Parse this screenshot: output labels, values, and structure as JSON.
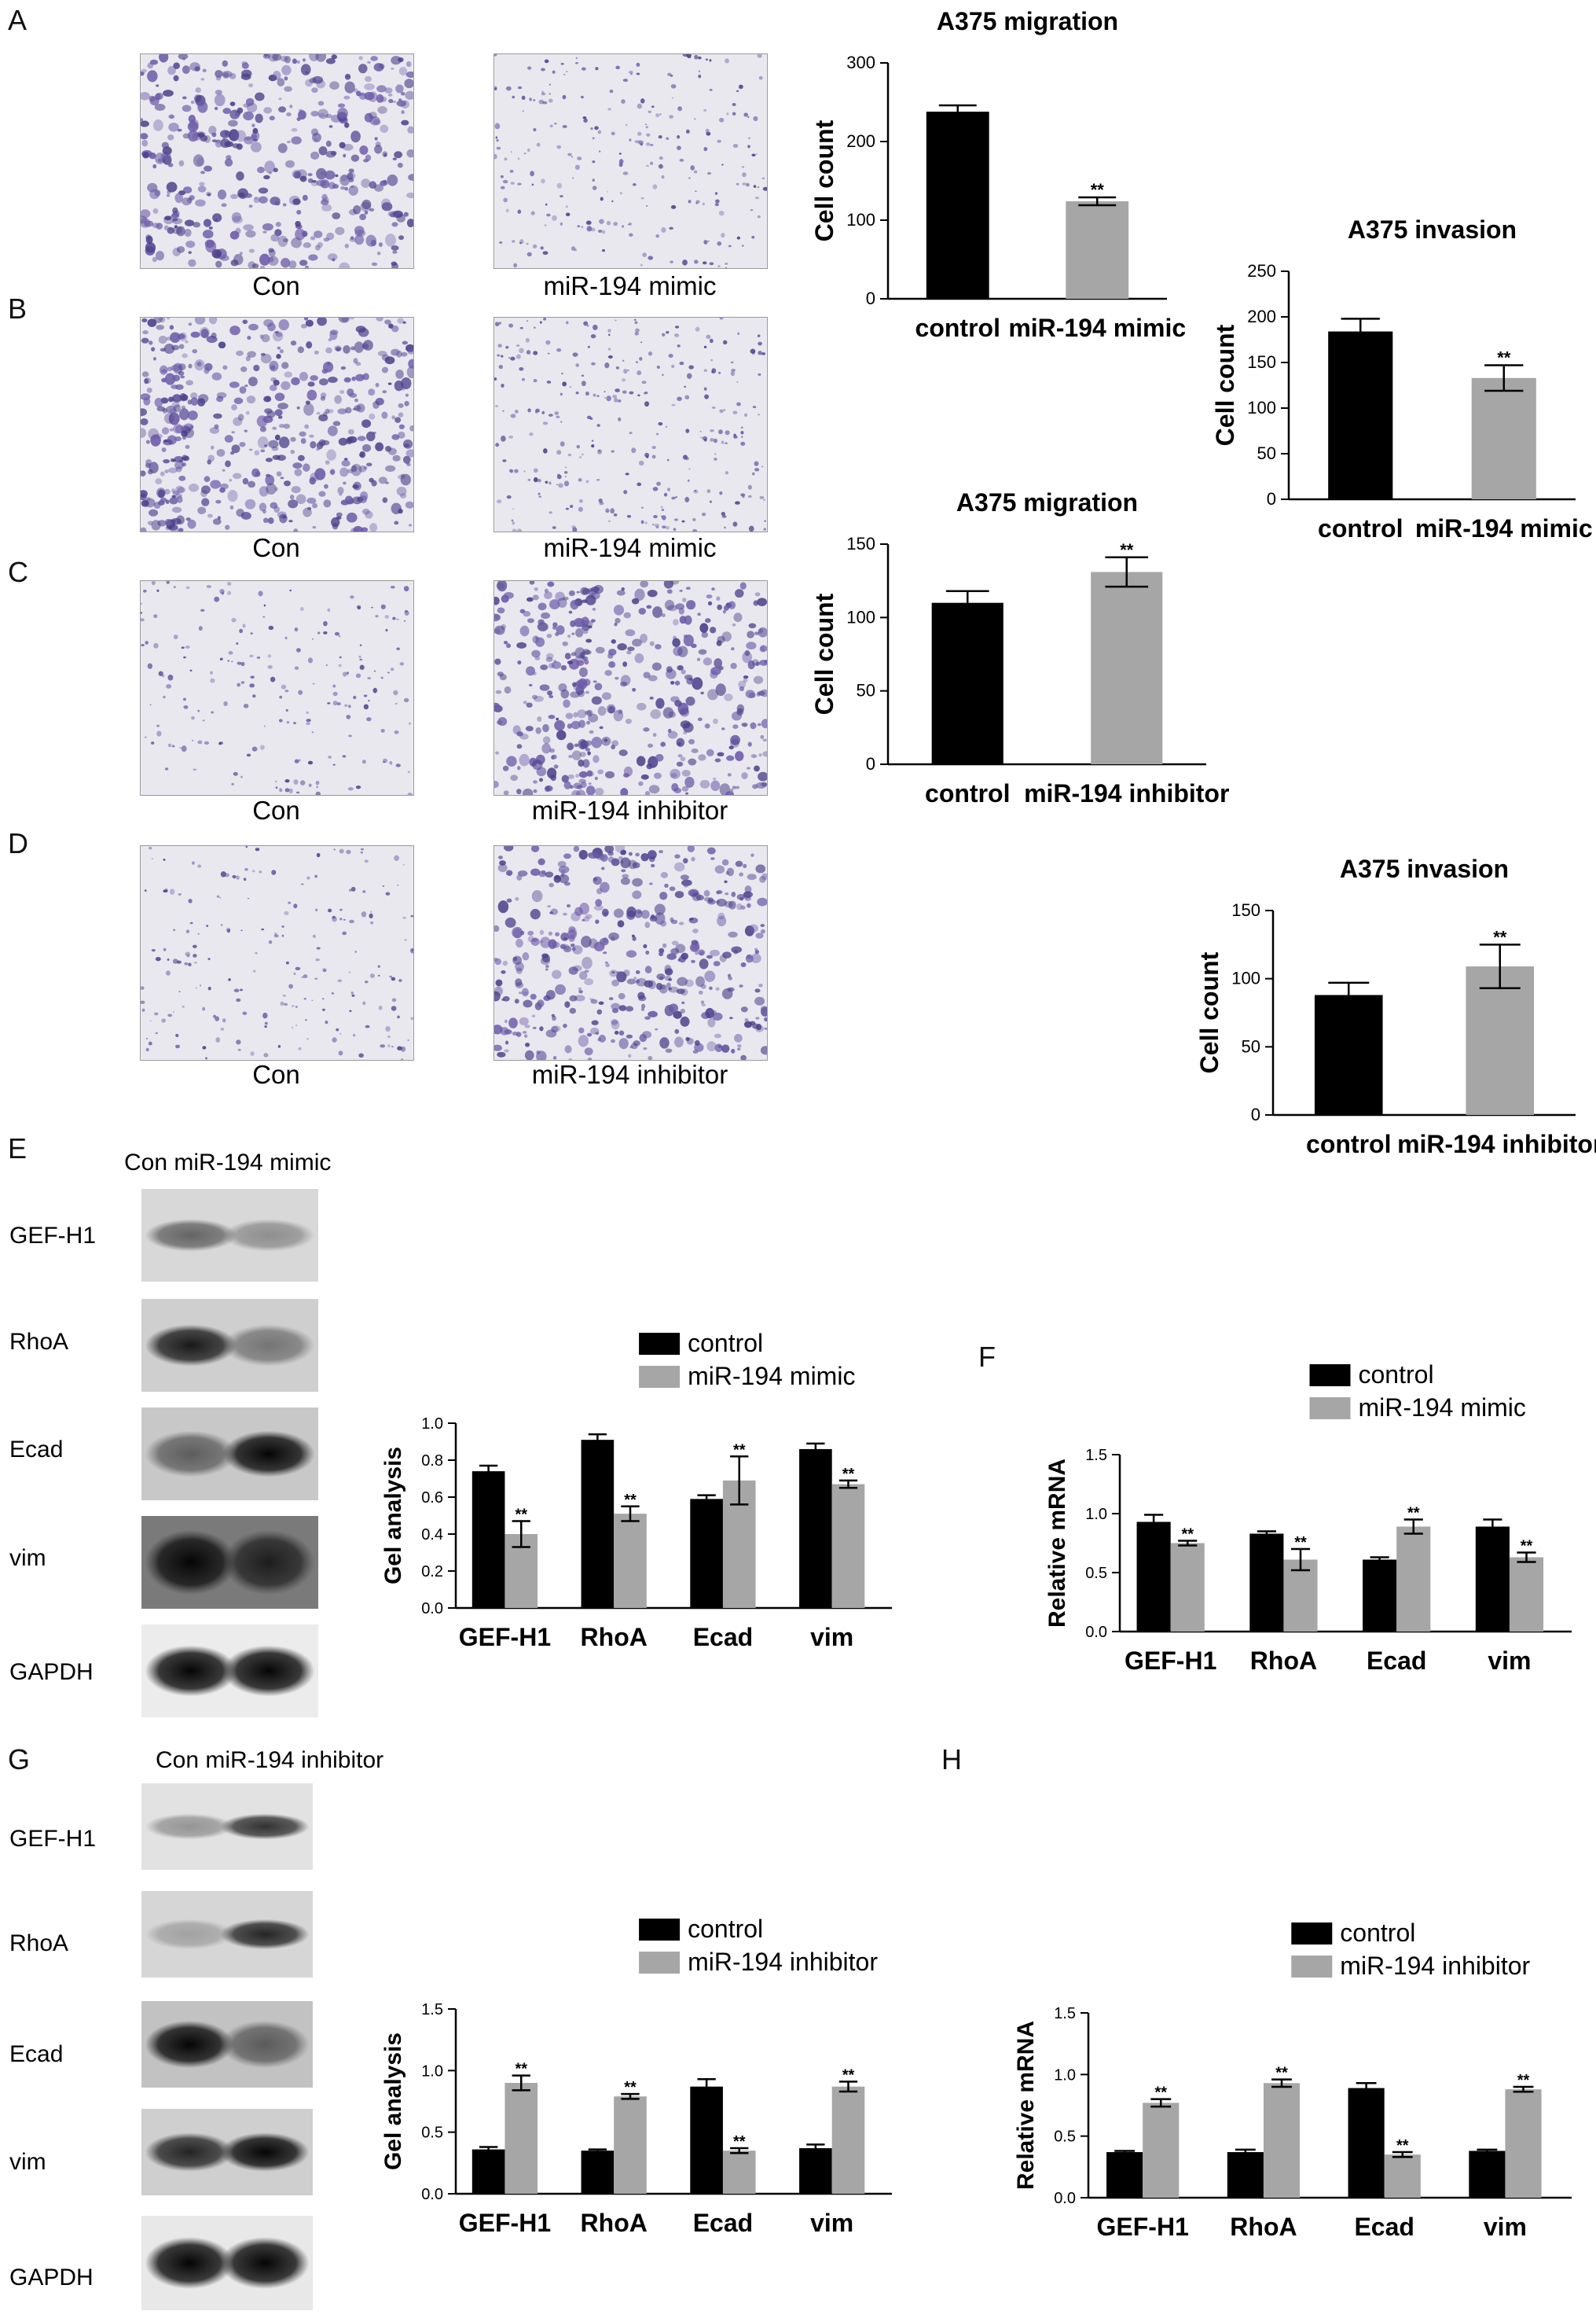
{
  "panel_letters": [
    "A",
    "B",
    "C",
    "D",
    "E",
    "F",
    "G",
    "H"
  ],
  "microscopy_captions": {
    "A_left": "Con",
    "A_right": "miR-194 mimic",
    "B_left": "Con",
    "B_right": "miR-194 mimic",
    "C_left": "Con",
    "C_right": "miR-194 inhibitor",
    "D_left": "Con",
    "D_right": "miR-194 inhibitor"
  },
  "blots": {
    "E": {
      "header": "Con miR-194 mimic",
      "labels": [
        "GEF-H1",
        "RhoA",
        "Ecad",
        "vim",
        "GAPDH"
      ]
    },
    "G": {
      "header": "Con miR-194 inhibitor",
      "labels": [
        "GEF-H1",
        "RhoA",
        "Ecad",
        "vim",
        "GAPDH"
      ]
    }
  },
  "colors": {
    "control": "#000000",
    "treated": "#a6a6a6"
  },
  "chart_data": [
    {
      "id": "A_migration",
      "type": "bar",
      "title": "A375 migration",
      "ylabel": "Cell count",
      "xlabel": "",
      "categories": [
        "control",
        "miR-194 mimic"
      ],
      "values": [
        238,
        124
      ],
      "errors": [
        8,
        5
      ],
      "significance": [
        "",
        "**"
      ],
      "ylim": [
        0,
        300
      ],
      "yticks": [
        0,
        100,
        200,
        300
      ]
    },
    {
      "id": "B_invasion",
      "type": "bar",
      "title": "A375 invasion",
      "ylabel": "Cell count",
      "xlabel": "",
      "categories": [
        "control",
        "miR-194 mimic"
      ],
      "values": [
        184,
        133
      ],
      "errors": [
        14,
        14
      ],
      "significance": [
        "",
        "**"
      ],
      "ylim": [
        0,
        250
      ],
      "yticks": [
        0,
        50,
        100,
        150,
        200,
        250
      ]
    },
    {
      "id": "C_migration",
      "type": "bar",
      "title": "A375 migration",
      "ylabel": "Cell count",
      "xlabel": "",
      "categories": [
        "control",
        "miR-194 inhibitor"
      ],
      "values": [
        110,
        131
      ],
      "errors": [
        8,
        10
      ],
      "significance": [
        "",
        "**"
      ],
      "ylim": [
        0,
        150
      ],
      "yticks": [
        0,
        50,
        100,
        150
      ]
    },
    {
      "id": "D_invasion",
      "type": "bar",
      "title": "A375 invasion",
      "ylabel": "Cell count",
      "xlabel": "",
      "categories": [
        "control",
        "miR-194 inhibitor"
      ],
      "values": [
        88,
        109
      ],
      "errors": [
        9,
        16
      ],
      "significance": [
        "",
        "**"
      ],
      "ylim": [
        0,
        150
      ],
      "yticks": [
        0,
        50,
        100,
        150
      ]
    },
    {
      "id": "E_gel",
      "type": "bar",
      "title": "",
      "ylabel": "Gel analysis",
      "xlabel": "",
      "categories": [
        "GEF-H1",
        "RhoA",
        "Ecad",
        "vim"
      ],
      "series": [
        {
          "name": "control",
          "values": [
            0.74,
            0.91,
            0.59,
            0.86
          ],
          "errors": [
            0.03,
            0.03,
            0.02,
            0.03
          ],
          "significance": [
            "",
            "",
            "",
            ""
          ]
        },
        {
          "name": "miR-194 mimic",
          "values": [
            0.4,
            0.51,
            0.69,
            0.67
          ],
          "errors": [
            0.07,
            0.04,
            0.13,
            0.02
          ],
          "significance": [
            "**",
            "**",
            "**",
            "**"
          ]
        }
      ],
      "ylim": [
        0,
        1.0
      ],
      "yticks": [
        "0.0",
        "0.2",
        "0.4",
        "0.6",
        "0.8",
        "1.0"
      ]
    },
    {
      "id": "F_mrna",
      "type": "bar",
      "title": "",
      "ylabel": "Relative mRNA",
      "xlabel": "",
      "categories": [
        "GEF-H1",
        "RhoA",
        "Ecad",
        "vim"
      ],
      "series": [
        {
          "name": "control",
          "values": [
            0.93,
            0.83,
            0.61,
            0.89
          ],
          "errors": [
            0.06,
            0.02,
            0.02,
            0.06
          ],
          "significance": [
            "",
            "",
            "",
            ""
          ]
        },
        {
          "name": "miR-194 mimic",
          "values": [
            0.75,
            0.61,
            0.89,
            0.63
          ],
          "errors": [
            0.02,
            0.09,
            0.06,
            0.04
          ],
          "significance": [
            "**",
            "**",
            "**",
            "**"
          ]
        }
      ],
      "ylim": [
        0,
        1.5
      ],
      "yticks": [
        "0.0",
        "0.5",
        "1.0",
        "1.5"
      ]
    },
    {
      "id": "G_gel",
      "type": "bar",
      "title": "",
      "ylabel": "Gel analysis",
      "xlabel": "",
      "categories": [
        "GEF-H1",
        "RhoA",
        "Ecad",
        "vim"
      ],
      "series": [
        {
          "name": "control",
          "values": [
            0.36,
            0.35,
            0.87,
            0.37
          ],
          "errors": [
            0.02,
            0.01,
            0.06,
            0.03
          ],
          "significance": [
            "",
            "",
            "",
            ""
          ]
        },
        {
          "name": "miR-194 inhibitor",
          "values": [
            0.9,
            0.79,
            0.35,
            0.87
          ],
          "errors": [
            0.06,
            0.02,
            0.02,
            0.04
          ],
          "significance": [
            "**",
            "**",
            "**",
            "**"
          ]
        }
      ],
      "ylim": [
        0,
        1.5
      ],
      "yticks": [
        "0.0",
        "0.5",
        "1.0",
        "1.5"
      ]
    },
    {
      "id": "H_mrna",
      "type": "bar",
      "title": "",
      "ylabel": "Relative mRNA",
      "xlabel": "",
      "categories": [
        "GEF-H1",
        "RhoA",
        "Ecad",
        "vim"
      ],
      "series": [
        {
          "name": "control",
          "values": [
            0.37,
            0.37,
            0.89,
            0.38
          ],
          "errors": [
            0.01,
            0.02,
            0.04,
            0.01
          ],
          "significance": [
            "",
            "",
            "",
            ""
          ]
        },
        {
          "name": "miR-194 inhibitor",
          "values": [
            0.77,
            0.93,
            0.35,
            0.88
          ],
          "errors": [
            0.03,
            0.03,
            0.02,
            0.02
          ],
          "significance": [
            "**",
            "**",
            "**",
            "**"
          ]
        }
      ],
      "ylim": [
        0,
        1.5
      ],
      "yticks": [
        "0.0",
        "0.5",
        "1.0",
        "1.5"
      ]
    }
  ]
}
